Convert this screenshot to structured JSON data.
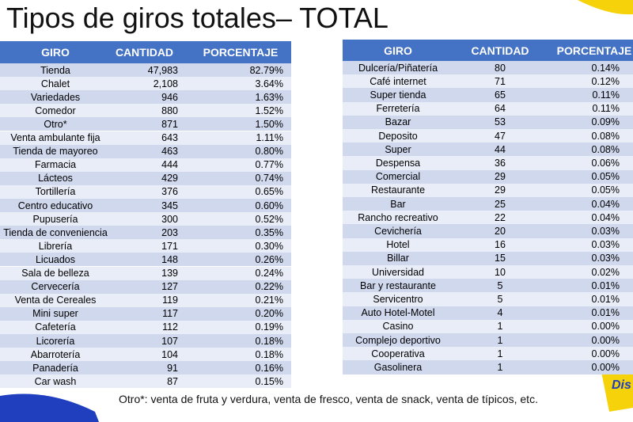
{
  "title": "Tipos de giros totales– TOTAL",
  "left_table": {
    "header": [
      "GIRO",
      "CANTIDAD",
      "PORCENTAJE"
    ],
    "rows": [
      [
        "Tienda",
        "47,983",
        "82.79%"
      ],
      [
        "Chalet",
        "2,108",
        "3.64%"
      ],
      [
        "Variedades",
        "946",
        "1.63%"
      ],
      [
        "Comedor",
        "880",
        "1.52%"
      ],
      [
        "Otro*",
        "871",
        "1.50%"
      ],
      [
        "Venta ambulante fija",
        "643",
        "1.11%"
      ],
      [
        "Tienda de mayoreo",
        "463",
        "0.80%"
      ],
      [
        "Farmacia",
        "444",
        "0.77%"
      ],
      [
        "Lácteos",
        "429",
        "0.74%"
      ],
      [
        "Tortillería",
        "376",
        "0.65%"
      ],
      [
        "Centro educativo",
        "345",
        "0.60%"
      ],
      [
        "Pupusería",
        "300",
        "0.52%"
      ],
      [
        "Tienda de conveniencia",
        "203",
        "0.35%"
      ],
      [
        "Librería",
        "171",
        "0.30%"
      ],
      [
        "Licuados",
        "148",
        "0.26%"
      ],
      [
        "Sala de belleza",
        "139",
        "0.24%"
      ],
      [
        "Cervecería",
        "127",
        "0.22%"
      ],
      [
        "Venta de Cereales",
        "119",
        "0.21%"
      ],
      [
        "Mini super",
        "117",
        "0.20%"
      ],
      [
        "Cafetería",
        "112",
        "0.19%"
      ],
      [
        "Licorería",
        "107",
        "0.18%"
      ],
      [
        "Abarrotería",
        "104",
        "0.18%"
      ],
      [
        "Panadería",
        "91",
        "0.16%"
      ],
      [
        "Car wash",
        "87",
        "0.15%"
      ]
    ]
  },
  "right_table": {
    "header": [
      "GIRO",
      "CANTIDAD",
      "PORCENTAJE"
    ],
    "rows": [
      [
        "Dulcería/Piñatería",
        "80",
        "0.14%"
      ],
      [
        "Café internet",
        "71",
        "0.12%"
      ],
      [
        "Super tienda",
        "65",
        "0.11%"
      ],
      [
        "Ferretería",
        "64",
        "0.11%"
      ],
      [
        "Bazar",
        "53",
        "0.09%"
      ],
      [
        "Deposito",
        "47",
        "0.08%"
      ],
      [
        "Super",
        "44",
        "0.08%"
      ],
      [
        "Despensa",
        "36",
        "0.06%"
      ],
      [
        "Comercial",
        "29",
        "0.05%"
      ],
      [
        "Restaurante",
        "29",
        "0.05%"
      ],
      [
        "Bar",
        "25",
        "0.04%"
      ],
      [
        "Rancho recreativo",
        "22",
        "0.04%"
      ],
      [
        "Cevichería",
        "20",
        "0.03%"
      ],
      [
        "Hotel",
        "16",
        "0.03%"
      ],
      [
        "Billar",
        "15",
        "0.03%"
      ],
      [
        "Universidad",
        "10",
        "0.02%"
      ],
      [
        "Bar y restaurante",
        "5",
        "0.01%"
      ],
      [
        "Servicentro",
        "5",
        "0.01%"
      ],
      [
        "Auto Hotel-Motel",
        "4",
        "0.01%"
      ],
      [
        "Casino",
        "1",
        "0.00%"
      ],
      [
        "Complejo deportivo",
        "1",
        "0.00%"
      ],
      [
        "Cooperativa",
        "1",
        "0.00%"
      ],
      [
        "Gasolinera",
        "1",
        "0.00%"
      ]
    ]
  },
  "footnote": "Otro*: venta de fruta y verdura, venta de fresco, venta de snack, venta de típicos, etc.",
  "logo": "Dis"
}
